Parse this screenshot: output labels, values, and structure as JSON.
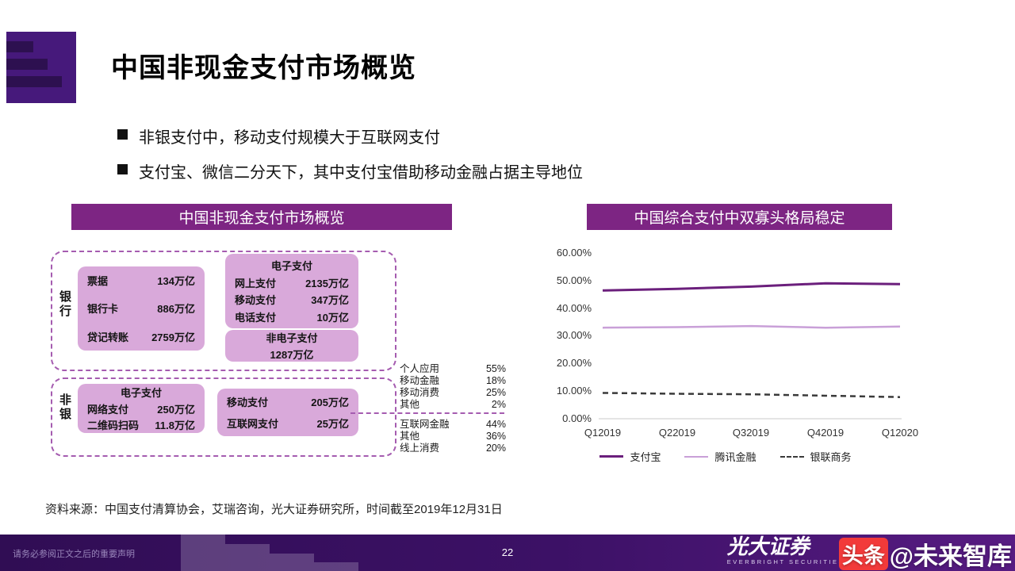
{
  "slide": {
    "title": "中国非现金支付市场概览",
    "bullets": [
      "非银支付中，移动支付规模大于互联网支付",
      "支付宝、微信二分天下，其中支付宝借助移动金融占据主导地位"
    ],
    "source": "资料来源：中国支付清算协会，艾瑞咨询，光大证券研究所，时间截至2019年12月31日"
  },
  "left_panel": {
    "header": "中国非现金支付市场概览",
    "bank": {
      "label": "银行",
      "rows": [
        {
          "name": "票据",
          "value": "134万亿"
        },
        {
          "name": "银行卡",
          "value": "886万亿"
        },
        {
          "name": "贷记转账",
          "value": "2759万亿"
        }
      ],
      "epay": {
        "title": "电子支付",
        "rows": [
          {
            "name": "网上支付",
            "value": "2135万亿"
          },
          {
            "name": "移动支付",
            "value": "347万亿"
          },
          {
            "name": "电话支付",
            "value": "10万亿"
          }
        ]
      },
      "non_epay": {
        "title": "非电子支付",
        "value": "1287万亿"
      }
    },
    "nonbank": {
      "label": "非银",
      "epay": {
        "title": "电子支付",
        "rows": [
          {
            "name": "网络支付",
            "value": "250万亿"
          },
          {
            "name": "二维码扫码",
            "value": "11.8万亿"
          }
        ]
      },
      "channels": {
        "rows": [
          {
            "name": "移动支付",
            "value": "205万亿"
          },
          {
            "name": "互联网支付",
            "value": "25万亿"
          }
        ]
      }
    },
    "breakdown_top": [
      {
        "name": "个人应用",
        "value": "55%"
      },
      {
        "name": "移动金融",
        "value": "18%"
      },
      {
        "name": "移动消费",
        "value": "25%"
      },
      {
        "name": "其他",
        "value": "2%"
      }
    ],
    "breakdown_bottom": [
      {
        "name": "互联网金融",
        "value": "44%"
      },
      {
        "name": "其他",
        "value": "36%"
      },
      {
        "name": "线上消费",
        "value": "20%"
      }
    ]
  },
  "right_panel": {
    "header": "中国综合支付中双寡头格局稳定"
  },
  "chart_data": {
    "type": "line",
    "title": "中国综合支付中双寡头格局稳定",
    "x": [
      "Q12019",
      "Q22019",
      "Q32019",
      "Q42019",
      "Q12020"
    ],
    "yticks": [
      "60.00%",
      "50.00%",
      "40.00%",
      "30.00%",
      "20.00%",
      "10.00%",
      "0.00%"
    ],
    "ylim": [
      0,
      60
    ],
    "grid": false,
    "legend_position": "bottom",
    "series": [
      {
        "name": "支付宝",
        "color": "#6b1f7c",
        "dash": "",
        "width": 3,
        "values": [
          46.2,
          46.8,
          47.6,
          48.8,
          48.5
        ]
      },
      {
        "name": "腾讯金融",
        "color": "#c9a0d8",
        "dash": "",
        "width": 2.5,
        "values": [
          32.8,
          33.0,
          33.4,
          32.8,
          33.2
        ]
      },
      {
        "name": "银联商务",
        "color": "#3a3a3a",
        "dash": "7 5",
        "width": 2.5,
        "values": [
          9.3,
          9.0,
          8.8,
          8.3,
          7.8
        ]
      }
    ]
  },
  "footer": {
    "disclaimer": "请务必参阅正文之后的重要声明",
    "page": "22",
    "brand": "光大证券",
    "brand_sub": "EVERBRIGHT SECURITIES",
    "watermark_prefix": "头条",
    "watermark": "@未来智库"
  }
}
